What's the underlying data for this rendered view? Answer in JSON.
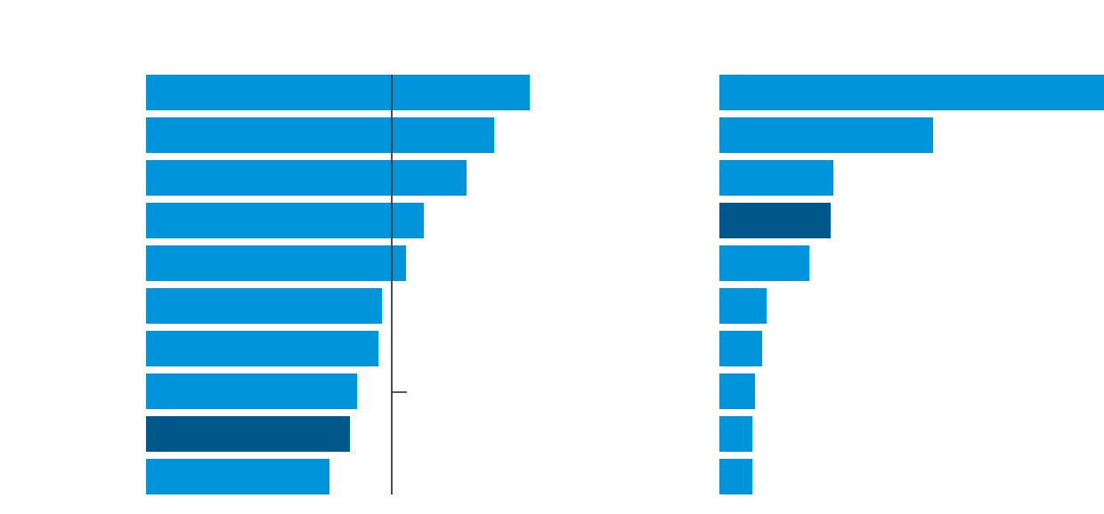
{
  "colors": {
    "bar": "#0095db",
    "highlight": "#00578a",
    "reference_line": "#222222",
    "background": "#ffffff"
  },
  "chart_data": [
    {
      "type": "bar",
      "orientation": "horizontal",
      "title": "",
      "xlabel": "",
      "ylabel": "",
      "categories": [
        "",
        "",
        "",
        "",
        "",
        "",
        "",
        "",
        "",
        ""
      ],
      "values": [
        431,
        391,
        360,
        312,
        292,
        265,
        261,
        237,
        229,
        206
      ],
      "highlight_index": 8,
      "xlim": [
        0,
        431
      ],
      "reference_value": 276,
      "reference_marker_value": 17,
      "grid": false,
      "legend": "none"
    },
    {
      "type": "bar",
      "orientation": "horizontal",
      "title": "",
      "xlabel": "",
      "ylabel": "",
      "categories": [
        "",
        "",
        "",
        "",
        "",
        "",
        "",
        "",
        "",
        ""
      ],
      "values": [
        432,
        240,
        128,
        125,
        101,
        53,
        48,
        40,
        37,
        37
      ],
      "highlight_index": 3,
      "xlim": [
        0,
        432
      ],
      "grid": false,
      "legend": "none"
    }
  ]
}
